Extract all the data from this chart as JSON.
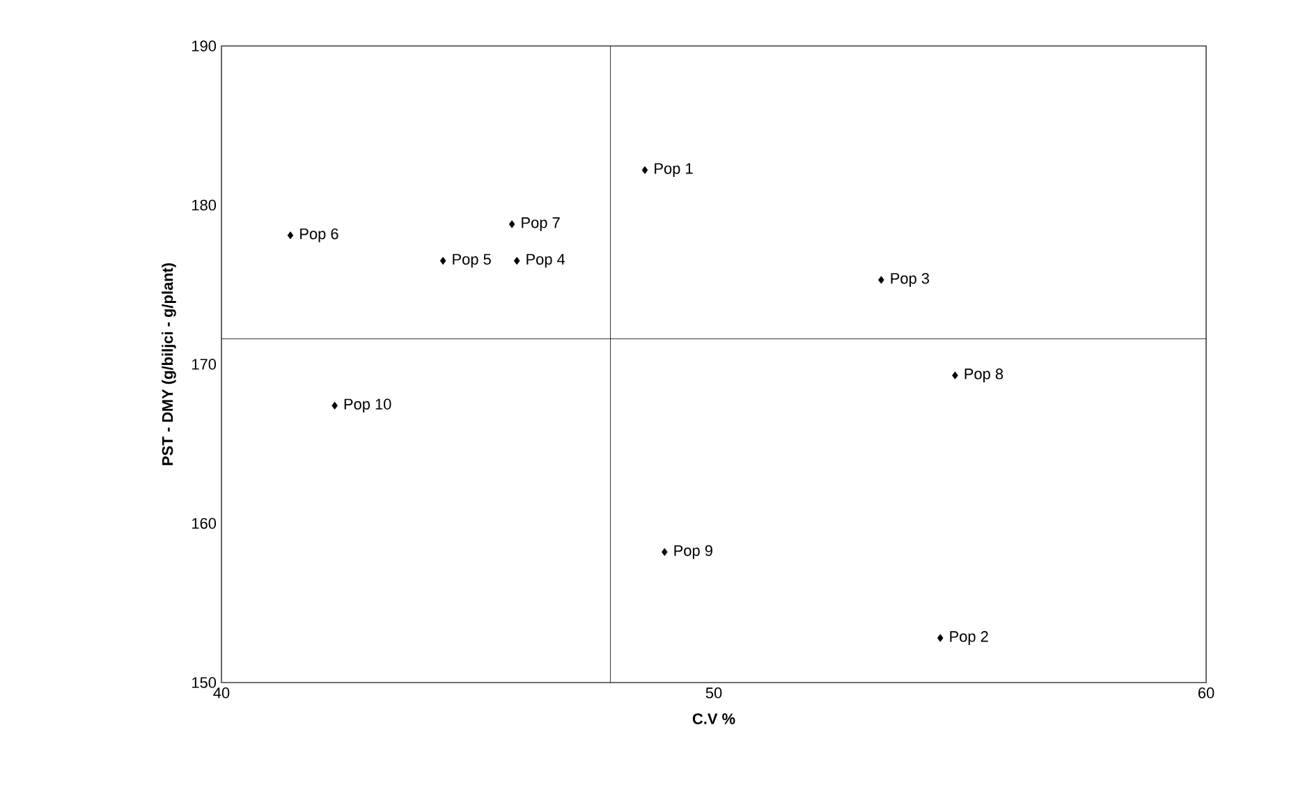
{
  "chart_data": {
    "type": "scatter",
    "xlabel": "C.V %",
    "ylabel": "PST - DMY (g/biljci - g/plant)",
    "xlim": [
      40,
      60
    ],
    "xticks": [
      40,
      50,
      60
    ],
    "ylim": [
      150,
      190
    ],
    "yticks": [
      150,
      160,
      170,
      180,
      190
    ],
    "marker": "diamond",
    "grid": false,
    "ref_lines": [
      {
        "axis": "x",
        "value": 47.9,
        "color": "#000000"
      },
      {
        "axis": "y",
        "value": 171.6,
        "color": "#000000"
      }
    ],
    "series": [
      {
        "name": "Pop 1",
        "color": "#000000",
        "x": [
          48.6
        ],
        "values": [
          182.2
        ]
      },
      {
        "name": "Pop 2",
        "color": "#000000",
        "x": [
          54.6
        ],
        "values": [
          152.8
        ]
      },
      {
        "name": "Pop 3",
        "color": "#000000",
        "x": [
          53.4
        ],
        "values": [
          175.3
        ]
      },
      {
        "name": "Pop 4",
        "color": "#000000",
        "x": [
          46.0
        ],
        "values": [
          176.5
        ]
      },
      {
        "name": "Pop 5",
        "color": "#000000",
        "x": [
          44.5
        ],
        "values": [
          176.5
        ]
      },
      {
        "name": "Pop 6",
        "color": "#000000",
        "x": [
          41.4
        ],
        "values": [
          178.1
        ]
      },
      {
        "name": "Pop 7",
        "color": "#000000",
        "x": [
          45.9
        ],
        "values": [
          178.8
        ]
      },
      {
        "name": "Pop 8",
        "color": "#000000",
        "x": [
          54.9
        ],
        "values": [
          169.3
        ]
      },
      {
        "name": "Pop 9",
        "color": "#000000",
        "x": [
          49.0
        ],
        "values": [
          158.2
        ]
      },
      {
        "name": "Pop 10",
        "color": "#000000",
        "x": [
          42.3
        ],
        "values": [
          167.4
        ]
      }
    ]
  }
}
